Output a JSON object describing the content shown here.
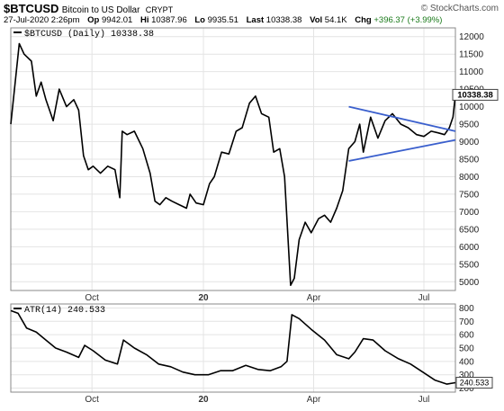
{
  "header": {
    "symbol": "$BTCUSD",
    "description": "Bitcoin to US Dollar",
    "exchange": "CRYPT",
    "source": "© StockCharts.com",
    "date": "27-Jul-2020 2:26pm",
    "open_label": "Op",
    "open": "9942.01",
    "high_label": "Hi",
    "high": "10387.96",
    "low_label": "Lo",
    "low": "9935.51",
    "last_label": "Last",
    "last": "10338.38",
    "vol_label": "Vol",
    "vol": "54.1K",
    "chg_label": "Chg",
    "chg": "+396.37 (+3.99%)"
  },
  "colors": {
    "price_line": "#000000",
    "trendline": "#3a5fcd",
    "grid": "#e4e4e4",
    "frame": "#888888"
  },
  "chart_data": [
    {
      "type": "line",
      "legend": "$BTCUSD (Daily) 10338.38",
      "last_value_badge": "10338.38",
      "y_ticks": [
        5000,
        5500,
        6000,
        6500,
        7000,
        7500,
        8000,
        8500,
        9000,
        9500,
        10000,
        10500,
        11000,
        11500,
        12000
      ],
      "ylim": [
        4750,
        12250
      ],
      "x_ticks": [
        {
          "label": "Oct",
          "date": "2019-10-01",
          "bold": false
        },
        {
          "label": "20",
          "date": "2020-01-01",
          "bold": true
        },
        {
          "label": "Apr",
          "date": "2020-04-01",
          "bold": false
        },
        {
          "label": "Jul",
          "date": "2020-07-01",
          "bold": false
        }
      ],
      "xlim": [
        "2019-07-26",
        "2020-07-27"
      ],
      "series": [
        {
          "x": [
            "2019-07-26",
            "2019-08-02",
            "2019-08-06",
            "2019-08-12",
            "2019-08-16",
            "2019-08-20",
            "2019-08-24",
            "2019-08-30",
            "2019-09-04",
            "2019-09-10",
            "2019-09-16",
            "2019-09-20",
            "2019-09-24",
            "2019-09-28",
            "2019-10-02",
            "2019-10-08",
            "2019-10-14",
            "2019-10-20",
            "2019-10-24",
            "2019-10-26",
            "2019-10-30",
            "2019-11-05",
            "2019-11-12",
            "2019-11-18",
            "2019-11-22",
            "2019-11-26",
            "2019-12-01",
            "2019-12-06",
            "2019-12-12",
            "2019-12-18",
            "2019-12-21",
            "2019-12-26",
            "2020-01-01",
            "2020-01-06",
            "2020-01-10",
            "2020-01-16",
            "2020-01-22",
            "2020-01-28",
            "2020-02-02",
            "2020-02-08",
            "2020-02-13",
            "2020-02-18",
            "2020-02-24",
            "2020-02-28",
            "2020-03-04",
            "2020-03-08",
            "2020-03-12",
            "2020-03-13",
            "2020-03-16",
            "2020-03-20",
            "2020-03-25",
            "2020-03-30",
            "2020-04-05",
            "2020-04-10",
            "2020-04-15",
            "2020-04-20",
            "2020-04-25",
            "2020-04-30",
            "2020-05-05",
            "2020-05-09",
            "2020-05-12",
            "2020-05-18",
            "2020-05-24",
            "2020-05-30",
            "2020-06-05",
            "2020-06-12",
            "2020-06-18",
            "2020-06-25",
            "2020-07-01",
            "2020-07-07",
            "2020-07-13",
            "2020-07-18",
            "2020-07-22",
            "2020-07-25",
            "2020-07-27"
          ],
          "y": [
            9500,
            11800,
            11500,
            11300,
            10300,
            10700,
            10200,
            9600,
            10500,
            10000,
            10200,
            9900,
            8600,
            8200,
            8300,
            8100,
            8300,
            8200,
            7400,
            9300,
            9200,
            9300,
            8800,
            8100,
            7300,
            7200,
            7400,
            7300,
            7200,
            7100,
            7500,
            7250,
            7200,
            7800,
            8000,
            8700,
            8650,
            9300,
            9400,
            10100,
            10300,
            9800,
            9700,
            8700,
            8800,
            8000,
            5500,
            4900,
            5100,
            6200,
            6700,
            6400,
            6800,
            6900,
            6700,
            7100,
            7600,
            8800,
            9000,
            9500,
            8700,
            9700,
            9100,
            9600,
            9800,
            9500,
            9400,
            9200,
            9150,
            9300,
            9250,
            9200,
            9400,
            9700,
            10338.38
          ]
        }
      ],
      "annotations": [
        {
          "type": "trendline",
          "from": {
            "x": "2020-04-30",
            "y": 10000
          },
          "to": {
            "x": "2020-07-27",
            "y": 9300
          }
        },
        {
          "type": "trendline",
          "from": {
            "x": "2020-04-30",
            "y": 8450
          },
          "to": {
            "x": "2020-07-27",
            "y": 9050
          }
        }
      ]
    },
    {
      "type": "line",
      "legend": "ATR(14) 240.533",
      "last_value_badge": "240.533",
      "y_ticks": [
        200,
        300,
        400,
        500,
        600,
        700,
        800
      ],
      "ylim": [
        170,
        830
      ],
      "x_ticks": [
        {
          "label": "Oct",
          "date": "2019-10-01",
          "bold": false
        },
        {
          "label": "20",
          "date": "2020-01-01",
          "bold": true
        },
        {
          "label": "Apr",
          "date": "2020-04-01",
          "bold": false
        },
        {
          "label": "Jul",
          "date": "2020-07-01",
          "bold": false
        }
      ],
      "xlim": [
        "2019-07-26",
        "2020-07-27"
      ],
      "series": [
        {
          "x": [
            "2019-07-26",
            "2019-08-01",
            "2019-08-08",
            "2019-08-16",
            "2019-08-24",
            "2019-09-01",
            "2019-09-10",
            "2019-09-20",
            "2019-09-25",
            "2019-10-02",
            "2019-10-12",
            "2019-10-22",
            "2019-10-27",
            "2019-11-05",
            "2019-11-15",
            "2019-11-25",
            "2019-12-05",
            "2019-12-15",
            "2019-12-25",
            "2020-01-05",
            "2020-01-15",
            "2020-01-25",
            "2020-02-05",
            "2020-02-15",
            "2020-02-25",
            "2020-03-05",
            "2020-03-10",
            "2020-03-14",
            "2020-03-20",
            "2020-03-30",
            "2020-04-10",
            "2020-04-20",
            "2020-04-30",
            "2020-05-05",
            "2020-05-12",
            "2020-05-20",
            "2020-05-30",
            "2020-06-10",
            "2020-06-20",
            "2020-06-30",
            "2020-07-10",
            "2020-07-20",
            "2020-07-27"
          ],
          "y": [
            780,
            760,
            650,
            620,
            560,
            500,
            470,
            430,
            520,
            480,
            410,
            380,
            560,
            500,
            450,
            380,
            360,
            320,
            300,
            300,
            330,
            330,
            370,
            340,
            330,
            360,
            400,
            750,
            720,
            640,
            560,
            450,
            420,
            470,
            570,
            560,
            480,
            420,
            380,
            320,
            260,
            230,
            240.533
          ]
        }
      ]
    }
  ]
}
